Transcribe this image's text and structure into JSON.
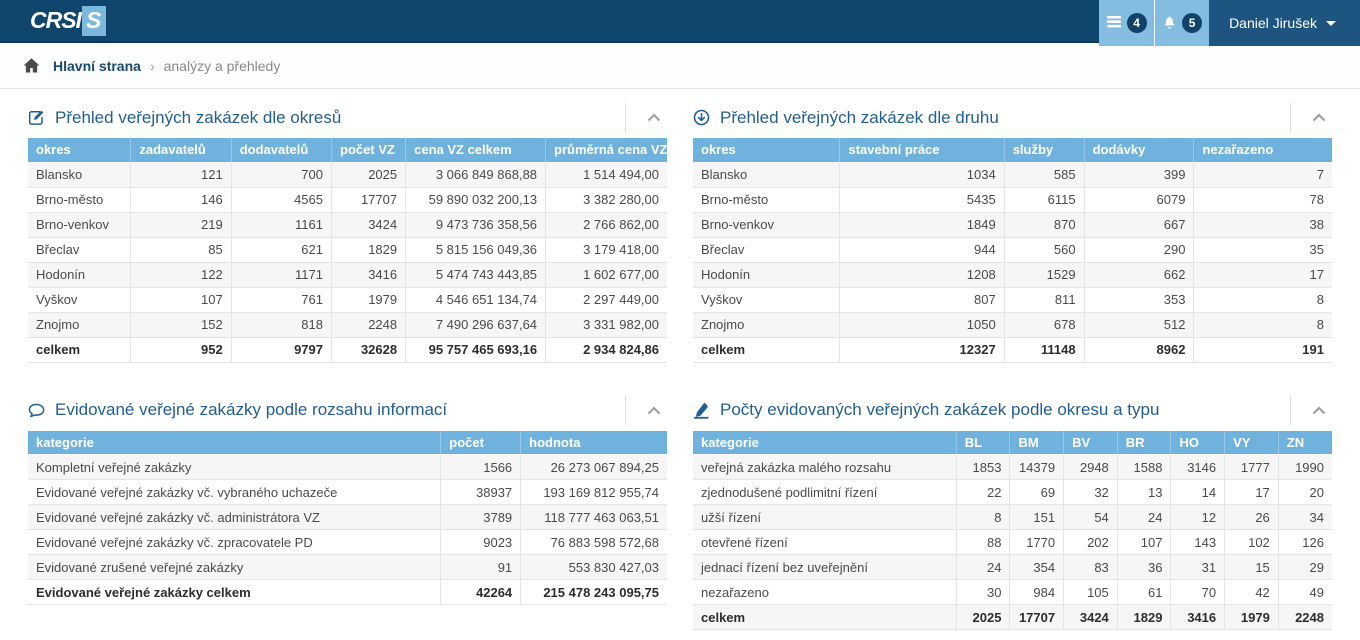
{
  "header": {
    "logo_text": "CRSIS",
    "messages_badge": "4",
    "notifications_badge": "5",
    "user_name": "Daniel Jirušek"
  },
  "breadcrumb": {
    "home": "Hlavní strana",
    "separator": "›",
    "current": "analýzy a přehledy"
  },
  "colors": {
    "navbar": "#10466c",
    "navbar_button": "#85bde1",
    "user_section": "#1d5580",
    "table_header": "#6fb2dd",
    "panel_title": "#235e8e"
  },
  "panels": [
    {
      "title": "Přehled veřejných zakázek dle okresů",
      "icon": "edit-icon",
      "columns": [
        "okres",
        "zadavatelů",
        "dodavatelů",
        "počet VZ",
        "cena VZ celkem",
        "průměrná cena VZ"
      ],
      "rows": [
        [
          "Blansko",
          "121",
          "700",
          "2025",
          "3 066 849 868,88",
          "1 514 494,00"
        ],
        [
          "Brno-město",
          "146",
          "4565",
          "17707",
          "59 890 032 200,13",
          "3 382 280,00"
        ],
        [
          "Brno-venkov",
          "219",
          "1161",
          "3424",
          "9 473 736 358,56",
          "2 766 862,00"
        ],
        [
          "Břeclav",
          "85",
          "621",
          "1829",
          "5 815 156 049,36",
          "3 179 418,00"
        ],
        [
          "Hodonín",
          "122",
          "1171",
          "3416",
          "5 474 743 443,85",
          "1 602 677,00"
        ],
        [
          "Vyškov",
          "107",
          "761",
          "1979",
          "4 546 651 134,74",
          "2 297 449,00"
        ],
        [
          "Znojmo",
          "152",
          "818",
          "2248",
          "7 490 296 637,64",
          "3 331 982,00"
        ]
      ],
      "total": [
        "celkem",
        "952",
        "9797",
        "32628",
        "95 757 465 693,16",
        "2 934 824,86"
      ]
    },
    {
      "title": "Přehled veřejných zakázek dle druhu",
      "icon": "arrow-circle-down-icon",
      "columns": [
        "okres",
        "stavební práce",
        "služby",
        "dodávky",
        "nezařazeno"
      ],
      "rows": [
        [
          "Blansko",
          "1034",
          "585",
          "399",
          "7"
        ],
        [
          "Brno-město",
          "5435",
          "6115",
          "6079",
          "78"
        ],
        [
          "Brno-venkov",
          "1849",
          "870",
          "667",
          "38"
        ],
        [
          "Břeclav",
          "944",
          "560",
          "290",
          "35"
        ],
        [
          "Hodonín",
          "1208",
          "1529",
          "662",
          "17"
        ],
        [
          "Vyškov",
          "807",
          "811",
          "353",
          "8"
        ],
        [
          "Znojmo",
          "1050",
          "678",
          "512",
          "8"
        ]
      ],
      "total": [
        "celkem",
        "12327",
        "11148",
        "8962",
        "191"
      ]
    },
    {
      "title": "Evidované veřejné zakázky podle rozsahu informací",
      "icon": "comment-icon",
      "columns": [
        "kategorie",
        "počet",
        "hodnota"
      ],
      "rows": [
        [
          "Kompletní veřejné zakázky",
          "1566",
          "26 273 067 894,25"
        ],
        [
          "Evidované veřejné zakázky vč. vybraného uchazeče",
          "38937",
          "193 169 812 955,74"
        ],
        [
          "Evidované veřejné zakázky vč. administrátora VZ",
          "3789",
          "118 777 463 063,51"
        ],
        [
          "Evidované veřejné zakázky vč. zpracovatele PD",
          "9023",
          "76 883 598 572,68"
        ],
        [
          "Evidované zrušené veřejné zakázky",
          "91",
          "553 830 427,03"
        ]
      ],
      "total": [
        "Evidované veřejné zakázky celkem",
        "42264",
        "215 478 243 095,75"
      ]
    },
    {
      "title": "Počty evidovaných veřejných zakázek podle okresu a typu",
      "icon": "pen-icon",
      "columns": [
        "kategorie",
        "BL",
        "BM",
        "BV",
        "BR",
        "HO",
        "VY",
        "ZN"
      ],
      "rows": [
        [
          "veřejná zakázka malého rozsahu",
          "1853",
          "14379",
          "2948",
          "1588",
          "3146",
          "1777",
          "1990"
        ],
        [
          "zjednodušené podlimitní řízení",
          "22",
          "69",
          "32",
          "13",
          "14",
          "17",
          "20"
        ],
        [
          "užší řízení",
          "8",
          "151",
          "54",
          "24",
          "12",
          "26",
          "34"
        ],
        [
          "otevřené řízení",
          "88",
          "1770",
          "202",
          "107",
          "143",
          "102",
          "126"
        ],
        [
          "jednací řízení bez uveřejnění",
          "24",
          "354",
          "83",
          "36",
          "31",
          "15",
          "29"
        ],
        [
          "nezařazeno",
          "30",
          "984",
          "105",
          "61",
          "70",
          "42",
          "49"
        ]
      ],
      "total": [
        "celkem",
        "2025",
        "17707",
        "3424",
        "1829",
        "3416",
        "1979",
        "2248"
      ]
    }
  ]
}
